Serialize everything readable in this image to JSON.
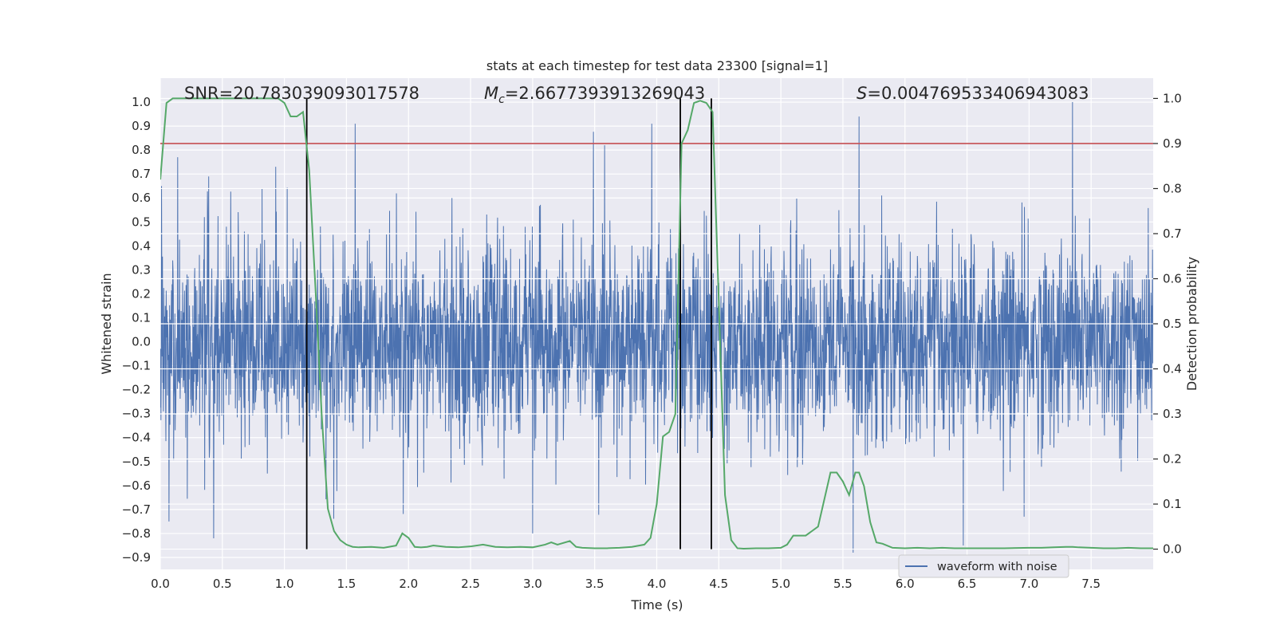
{
  "chart_data": {
    "type": "line",
    "title": "stats at each timestep for test data 23300 [signal=1]",
    "xlabel": "Time (s)",
    "ylabel_left": "Whitened strain",
    "ylabel_right": "Detection probability",
    "xlim": [
      0,
      8
    ],
    "ylim_left": [
      -0.95,
      1.1
    ],
    "ylim_right": [
      -0.045,
      1.045
    ],
    "x_ticks": [
      0.0,
      0.5,
      1.0,
      1.5,
      2.0,
      2.5,
      3.0,
      3.5,
      4.0,
      4.5,
      5.0,
      5.5,
      6.0,
      6.5,
      7.0,
      7.5
    ],
    "x_tick_labels": [
      "0.0",
      "0.5",
      "1.0",
      "1.5",
      "2.0",
      "2.5",
      "3.0",
      "3.5",
      "4.0",
      "4.5",
      "5.0",
      "5.5",
      "6.0",
      "6.5",
      "7.0",
      "7.5"
    ],
    "y_left_ticks": [
      1.0,
      0.9,
      0.8,
      0.7,
      0.6,
      0.5,
      0.4,
      0.3,
      0.2,
      0.1,
      0.0,
      -0.1,
      -0.2,
      -0.3,
      -0.4,
      -0.5,
      -0.6,
      -0.7,
      -0.8,
      -0.9
    ],
    "y_left_tick_labels": [
      "1.0",
      "0.9",
      "0.8",
      "0.7",
      "0.6",
      "0.5",
      "0.4",
      "0.3",
      "0.2",
      "0.1",
      "0.0",
      "−0.1",
      "−0.2",
      "−0.3",
      "−0.4",
      "−0.5",
      "−0.6",
      "−0.7",
      "−0.8",
      "−0.9"
    ],
    "y_right_ticks": [
      1.0,
      0.9,
      0.8,
      0.7,
      0.6,
      0.5,
      0.4,
      0.3,
      0.2,
      0.1,
      0.0
    ],
    "y_right_tick_labels": [
      "1.0",
      "0.9",
      "0.8",
      "0.7",
      "0.6",
      "0.5",
      "0.4",
      "0.3",
      "0.2",
      "0.1",
      "0.0"
    ],
    "annotations": {
      "snr": "SNR=20.783039093017578",
      "mc": "Mc=2.6677393913269043",
      "mc_base": "M",
      "mc_sub": "c",
      "mc_value": "=2.6677393913269043",
      "s": "S=0.004769533406943083",
      "s_base": "S",
      "s_value": "=0.004769533406943083"
    },
    "threshold_probability": 0.9,
    "vertical_markers_s": [
      1.18,
      4.19,
      4.44
    ],
    "legend": {
      "label": "waveform with noise",
      "placement": "lower-center"
    },
    "series": [
      {
        "name": "waveform with noise",
        "axis": "left",
        "color": "#4c72b0",
        "envelope_typical_peak": 0.45,
        "peaks": [
          {
            "x": 0.01,
            "y": 0.65
          },
          {
            "x": 0.07,
            "y": -0.75
          },
          {
            "x": 0.14,
            "y": 0.77
          },
          {
            "x": 0.39,
            "y": 0.69
          },
          {
            "x": 0.43,
            "y": -0.82
          },
          {
            "x": 0.82,
            "y": 0.64
          },
          {
            "x": 1.57,
            "y": 0.91
          },
          {
            "x": 2.35,
            "y": 0.6
          },
          {
            "x": 3.0,
            "y": -0.8
          },
          {
            "x": 3.58,
            "y": 0.82
          },
          {
            "x": 3.96,
            "y": 0.91
          },
          {
            "x": 5.63,
            "y": 0.94
          },
          {
            "x": 6.47,
            "y": 0.78
          },
          {
            "x": 6.47,
            "y": -0.85
          },
          {
            "x": 7.35,
            "y": 1.0
          },
          {
            "x": 6.96,
            "y": -0.73
          }
        ]
      },
      {
        "name": "Detection probability",
        "axis": "right",
        "color": "#55a868",
        "x": [
          0.0,
          0.05,
          0.1,
          0.2,
          0.3,
          0.5,
          0.7,
          0.9,
          0.95,
          1.0,
          1.05,
          1.1,
          1.15,
          1.2,
          1.25,
          1.3,
          1.35,
          1.4,
          1.45,
          1.5,
          1.55,
          1.6,
          1.7,
          1.8,
          1.9,
          1.95,
          2.0,
          2.05,
          2.1,
          2.15,
          2.2,
          2.3,
          2.4,
          2.5,
          2.6,
          2.7,
          2.8,
          2.9,
          3.0,
          3.1,
          3.15,
          3.2,
          3.3,
          3.35,
          3.4,
          3.5,
          3.6,
          3.7,
          3.8,
          3.9,
          3.95,
          4.0,
          4.05,
          4.1,
          4.15,
          4.2,
          4.25,
          4.3,
          4.35,
          4.4,
          4.45,
          4.5,
          4.55,
          4.6,
          4.65,
          4.7,
          4.8,
          4.9,
          5.0,
          5.05,
          5.1,
          5.15,
          5.2,
          5.3,
          5.4,
          5.45,
          5.5,
          5.55,
          5.6,
          5.63,
          5.67,
          5.72,
          5.77,
          5.82,
          5.9,
          6.0,
          6.1,
          6.2,
          6.3,
          6.4,
          6.5,
          6.6,
          6.8,
          7.0,
          7.1,
          7.2,
          7.3,
          7.35,
          7.4,
          7.5,
          7.6,
          7.7,
          7.8,
          7.9,
          8.0
        ],
        "y": [
          0.82,
          0.99,
          1.0,
          1.0,
          1.0,
          1.0,
          1.0,
          1.0,
          1.0,
          0.99,
          0.96,
          0.96,
          0.97,
          0.84,
          0.58,
          0.3,
          0.09,
          0.04,
          0.02,
          0.01,
          0.005,
          0.004,
          0.005,
          0.003,
          0.008,
          0.035,
          0.025,
          0.005,
          0.004,
          0.005,
          0.008,
          0.005,
          0.004,
          0.006,
          0.01,
          0.005,
          0.004,
          0.005,
          0.004,
          0.01,
          0.015,
          0.01,
          0.018,
          0.005,
          0.003,
          0.002,
          0.002,
          0.003,
          0.005,
          0.01,
          0.025,
          0.1,
          0.25,
          0.26,
          0.3,
          0.9,
          0.93,
          0.99,
          0.995,
          0.99,
          0.97,
          0.55,
          0.12,
          0.02,
          0.002,
          0.001,
          0.002,
          0.002,
          0.003,
          0.01,
          0.03,
          0.03,
          0.03,
          0.05,
          0.17,
          0.17,
          0.15,
          0.12,
          0.17,
          0.17,
          0.14,
          0.06,
          0.015,
          0.012,
          0.003,
          0.002,
          0.003,
          0.002,
          0.003,
          0.002,
          0.002,
          0.002,
          0.002,
          0.003,
          0.003,
          0.004,
          0.005,
          0.005,
          0.004,
          0.003,
          0.002,
          0.002,
          0.003,
          0.002,
          0.002
        ]
      }
    ]
  },
  "colors": {
    "plot_bg": "#eaeaf2",
    "grid": "#ffffff",
    "waveform": "#4c72b0",
    "probability": "#55a868",
    "threshold": "#c44e52",
    "marker": "#000000",
    "text": "#262626"
  }
}
